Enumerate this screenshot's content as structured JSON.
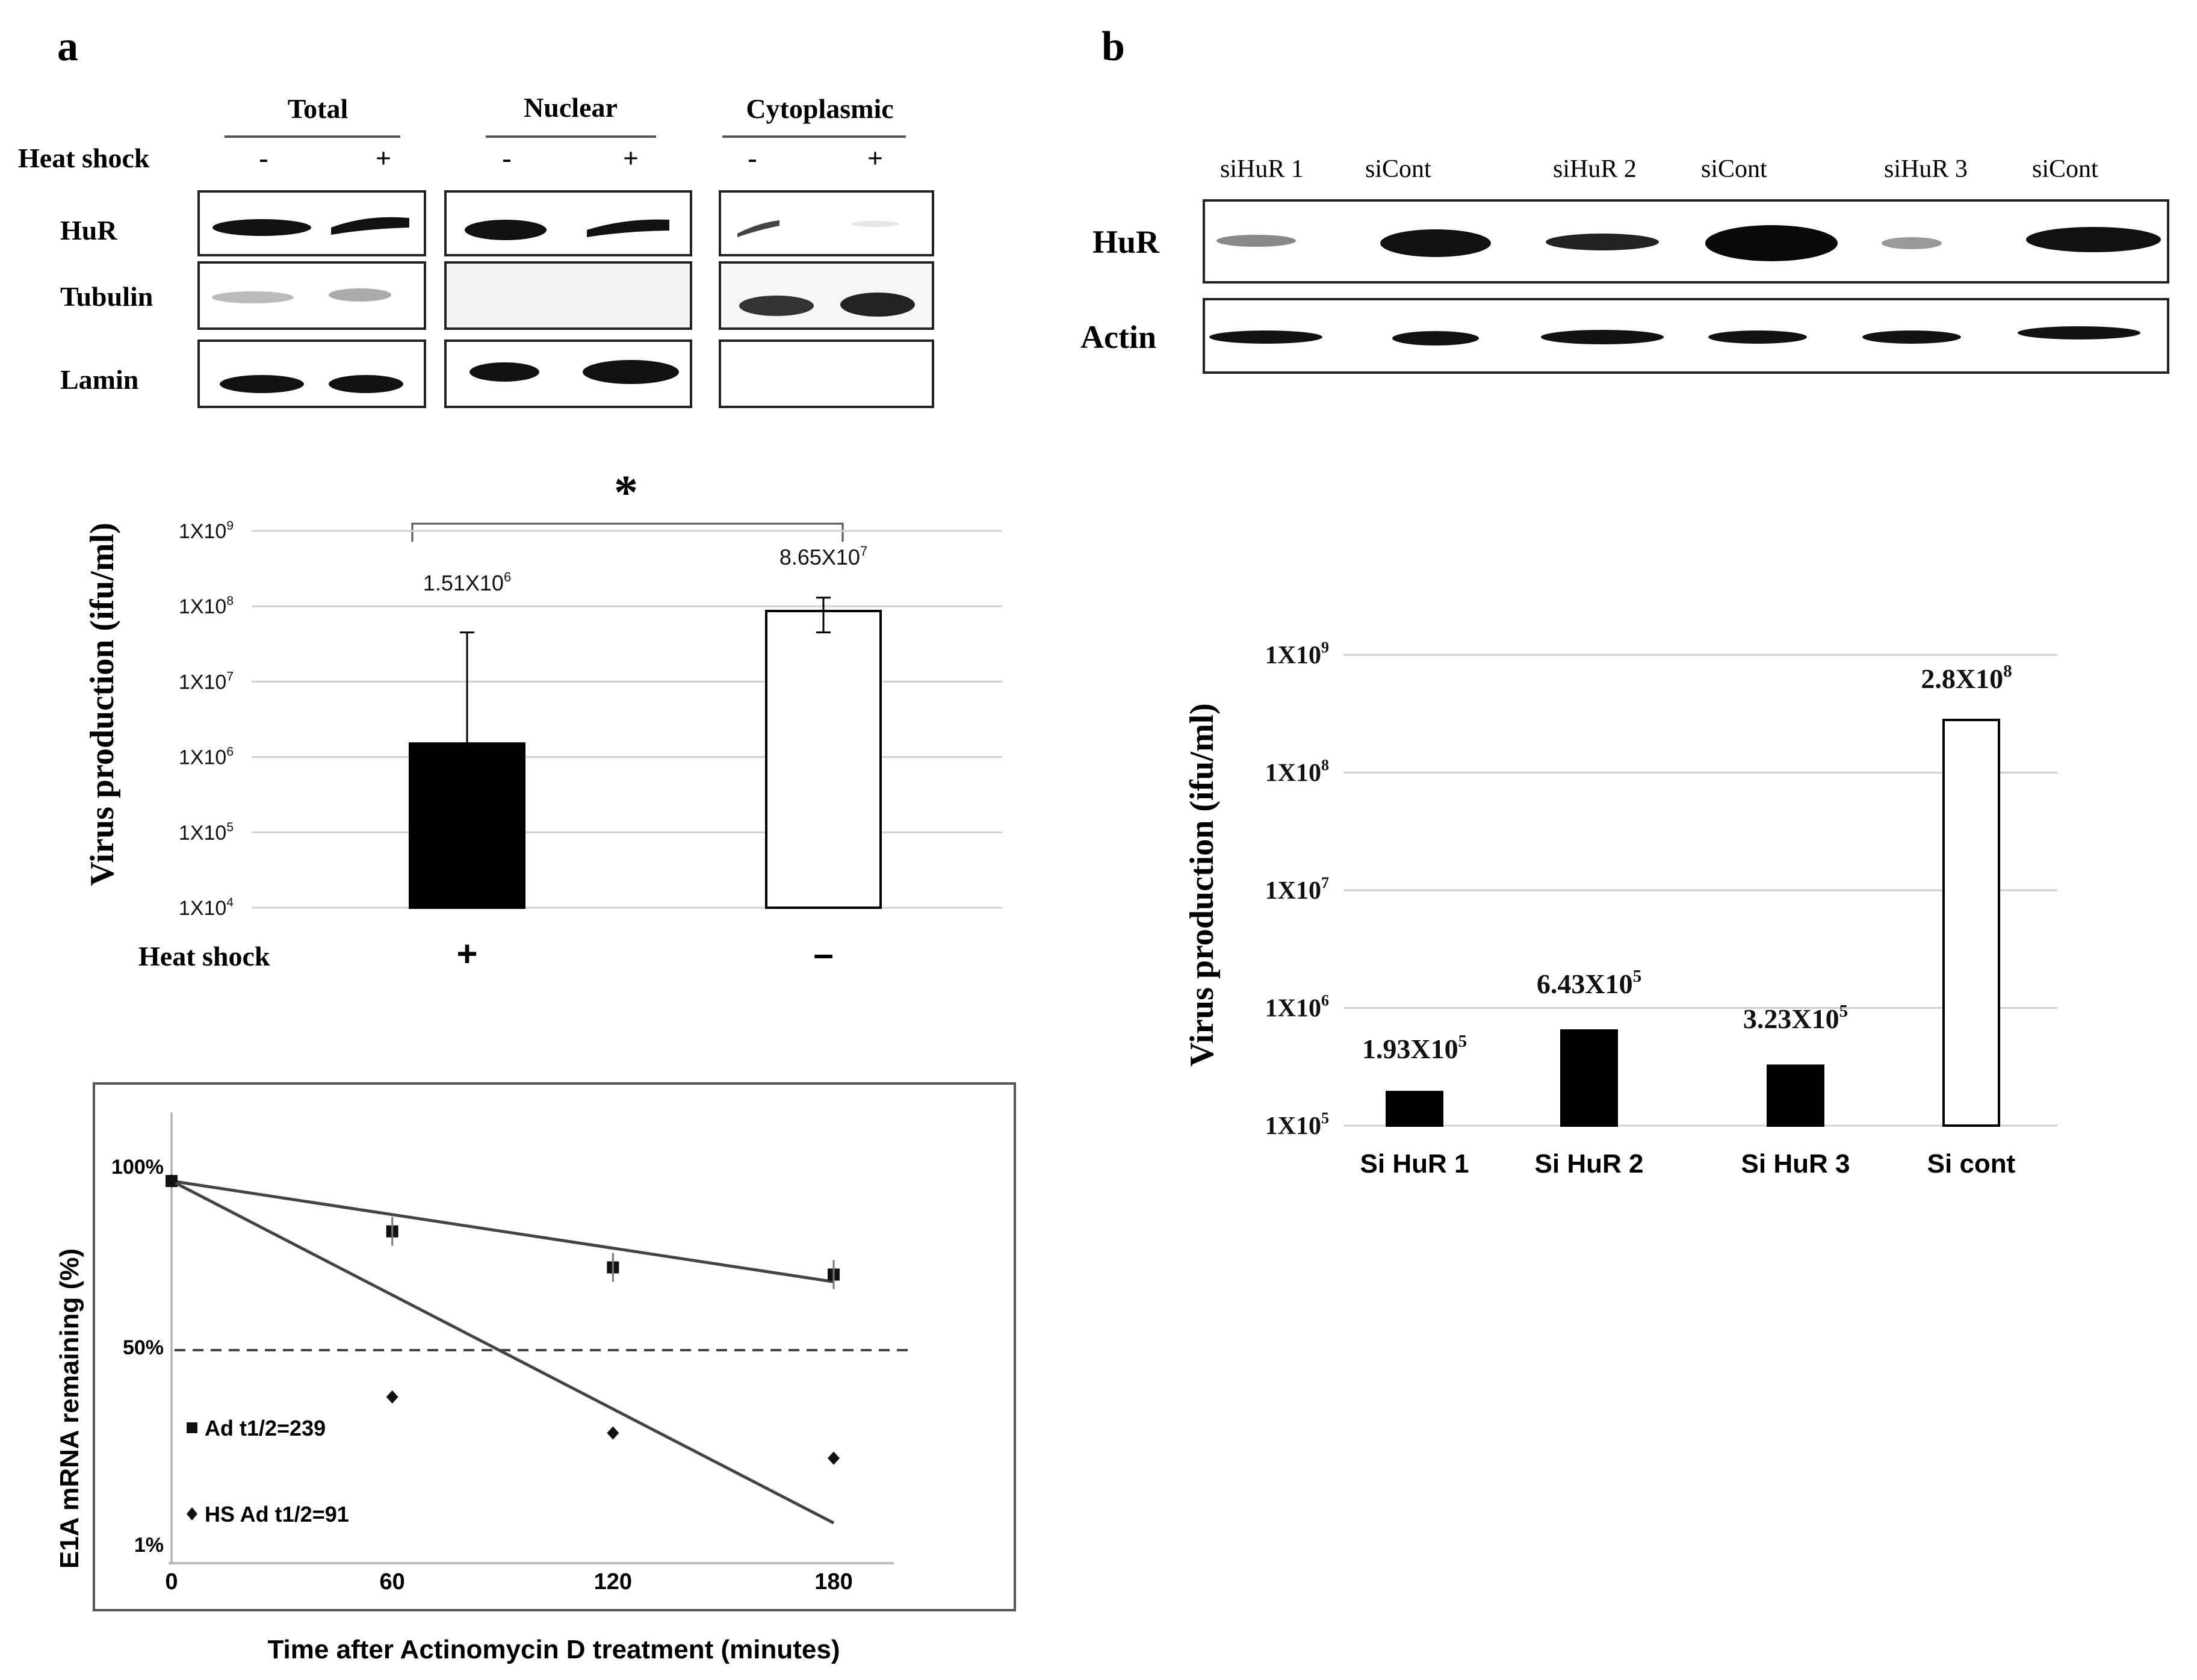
{
  "panel_a": {
    "label": "a",
    "blot": {
      "group_headers": [
        "Total",
        "Nuclear",
        "Cytoplasmic"
      ],
      "condition_label": "Heat shock",
      "condition_values": [
        "-",
        "+",
        "-",
        "+",
        "-",
        "+"
      ],
      "row_labels": [
        "HuR",
        "Tubulin",
        "Lamin"
      ]
    },
    "significance": "*",
    "bar_labels_sup": [
      "6",
      "7"
    ]
  },
  "panel_b": {
    "label": "b",
    "blot": {
      "lane_labels": [
        "siHuR 1",
        "siCont",
        "siHuR 2",
        "siCont",
        "siHuR 3",
        "siCont"
      ],
      "row_labels": [
        "HuR",
        "Actin"
      ]
    },
    "bar_labels": [
      "1.93X10",
      "6.43X10",
      "3.23X10",
      "2.8X10"
    ],
    "bar_labels_sup": [
      "5",
      "5",
      "5",
      "8"
    ]
  },
  "chart_data": [
    {
      "id": "a-bar",
      "type": "bar",
      "scale": "log",
      "ylabel": "Virus production (ifu/ml)",
      "xlabel": "Heat shock",
      "tick_base": "1X10",
      "tick_exponents": [
        "9",
        "8",
        "7",
        "6",
        "5",
        "4"
      ],
      "ylim": [
        10000,
        1000000000
      ],
      "categories": [
        "+",
        "–"
      ],
      "values": [
        1510000,
        86500000
      ],
      "error_upper": [
        45000000,
        130000000
      ],
      "error_lower": [
        1510000,
        45000000
      ],
      "bar_fill": [
        "#000000",
        "#ffffff"
      ],
      "data_labels": [
        "1.51X10",
        "8.65X10"
      ]
    },
    {
      "id": "a-decay",
      "type": "line",
      "ylabel": "E1A mRNA remaining (%)",
      "xlabel": "Time after Actinomycin D treatment (minutes)",
      "xticks": [
        "0",
        "60",
        "120",
        "180"
      ],
      "yticks": [
        "100%",
        "50%",
        "1%"
      ],
      "reference_line_percent": 50,
      "series": [
        {
          "name": "Ad t1/2=239",
          "marker": "square",
          "x": [
            0,
            60,
            120,
            180
          ],
          "y": [
            100,
            86,
            76,
            74
          ],
          "fit_end": 72
        },
        {
          "name": "HS Ad t1/2=91",
          "marker": "diamond",
          "x": [
            0,
            60,
            120,
            180
          ],
          "y": [
            100,
            40,
            30,
            23
          ],
          "fit_end": 5
        }
      ]
    },
    {
      "id": "b-bar",
      "type": "bar",
      "scale": "log",
      "ylabel": "Virus production (ifu/ml)",
      "tick_base": "1X10",
      "tick_exponents": [
        "9",
        "8",
        "7",
        "6",
        "5"
      ],
      "ylim": [
        100000,
        1000000000
      ],
      "categories": [
        "Si HuR 1",
        "Si HuR 2",
        "Si HuR 3",
        "Si cont"
      ],
      "values": [
        193000,
        643000,
        323000,
        280000000
      ],
      "bar_fill": [
        "#000000",
        "#000000",
        "#000000",
        "#ffffff"
      ]
    }
  ]
}
